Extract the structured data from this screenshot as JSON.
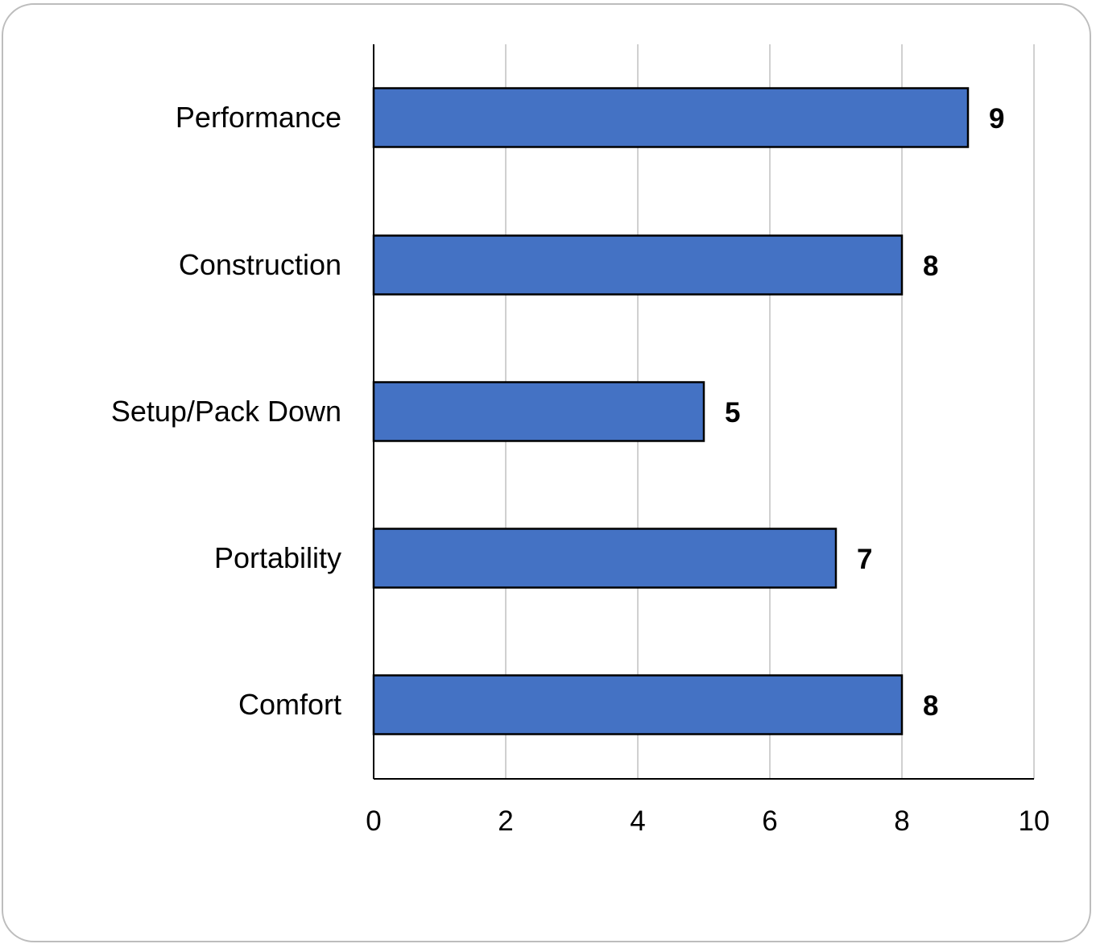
{
  "chart_data": {
    "type": "bar",
    "orientation": "horizontal",
    "categories": [
      "Performance",
      "Construction",
      "Setup/Pack Down",
      "Portability",
      "Comfort"
    ],
    "values": [
      9,
      8,
      5,
      7,
      8
    ],
    "xlim": [
      0,
      10
    ],
    "xticks": [
      "0",
      "2",
      "4",
      "6",
      "8",
      "10"
    ],
    "title": "",
    "xlabel": "",
    "ylabel": "",
    "grid": "vertical",
    "legend": "none",
    "data_labels": true
  },
  "colors": {
    "bar_fill": "#4472C4",
    "bar_stroke": "#000000",
    "grid": "#d0d0d0",
    "axis": "#000000",
    "frame_border": "#bdbdbd"
  }
}
